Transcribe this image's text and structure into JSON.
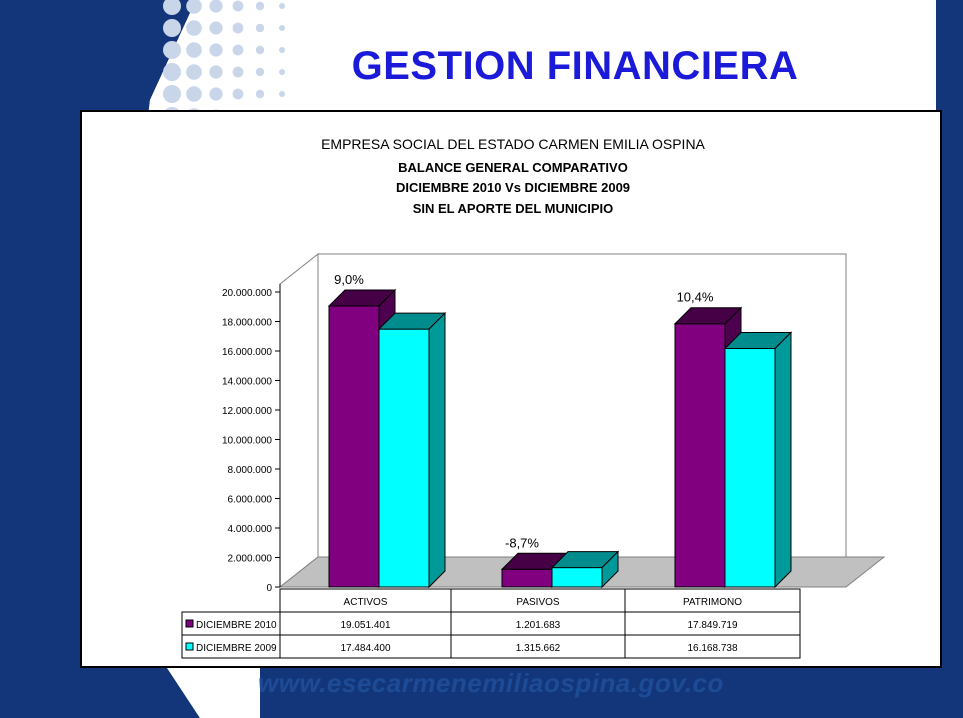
{
  "slide": {
    "title": "GESTION FINANCIERA",
    "footer_url": "www.esecarmenemiliaospina.gov.co"
  },
  "colors": {
    "navy": "#13367a",
    "title_blue": "#1a1ad8",
    "series_2010": "#800080",
    "series_2009": "#00ffff",
    "floor": "#c0c0c0"
  },
  "chart_data": {
    "type": "bar",
    "title_lines": [
      "EMPRESA SOCIAL DEL ESTADO CARMEN EMILIA OSPINA",
      "BALANCE GENERAL COMPARATIVO",
      "DICIEMBRE 2010  Vs DICIEMBRE 2009",
      "SIN EL APORTE DEL MUNICIPIO"
    ],
    "categories": [
      "ACTIVOS",
      "PASIVOS",
      "PATRIMONO"
    ],
    "series": [
      {
        "name": "DICIEMBRE 2010",
        "values": [
          19051401,
          1201683,
          17849719
        ],
        "labels": [
          "19.051.401",
          "1.201.683",
          "17.849.719"
        ]
      },
      {
        "name": "DICIEMBRE 2009",
        "values": [
          17484400,
          1315662,
          16168738
        ],
        "labels": [
          "17.484.400",
          "1.315.662",
          "16.168.738"
        ]
      }
    ],
    "change_labels": [
      "9,0%",
      "-8,7%",
      "10,4%"
    ],
    "ylim": [
      0,
      20000000
    ],
    "y_ticks": [
      "0",
      "2.000.000",
      "4.000.000",
      "6.000.000",
      "8.000.000",
      "10.000.000",
      "12.000.000",
      "14.000.000",
      "16.000.000",
      "18.000.000",
      "20.000.000"
    ],
    "legend": "data-table"
  }
}
